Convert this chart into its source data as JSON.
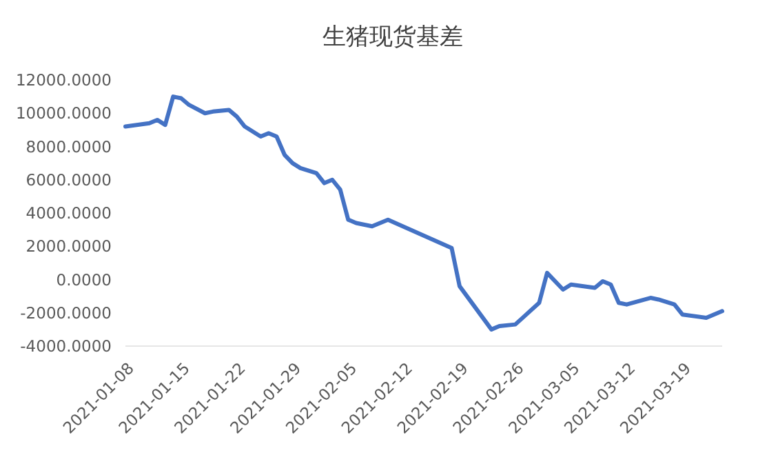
{
  "chart_data": {
    "type": "line",
    "title": "生猪现货基差",
    "grid": false,
    "line_style": "solid",
    "marker": "none",
    "x": [
      "2021-01-08",
      "2021-01-11",
      "2021-01-12",
      "2021-01-13",
      "2021-01-14",
      "2021-01-15",
      "2021-01-16",
      "2021-01-18",
      "2021-01-19",
      "2021-01-21",
      "2021-01-22",
      "2021-01-23",
      "2021-01-25",
      "2021-01-26",
      "2021-01-27",
      "2021-01-28",
      "2021-01-29",
      "2021-01-30",
      "2021-02-01",
      "2021-02-02",
      "2021-02-03",
      "2021-02-04",
      "2021-02-05",
      "2021-02-06",
      "2021-02-08",
      "2021-02-10",
      "2021-02-18",
      "2021-02-19",
      "2021-02-23",
      "2021-02-24",
      "2021-02-26",
      "2021-03-01",
      "2021-03-02",
      "2021-03-04",
      "2021-03-05",
      "2021-03-08",
      "2021-03-09",
      "2021-03-10",
      "2021-03-11",
      "2021-03-12",
      "2021-03-15",
      "2021-03-16",
      "2021-03-18",
      "2021-03-19",
      "2021-03-22",
      "2021-03-24"
    ],
    "series": [
      {
        "color": "#4472c4",
        "values": [
          9200,
          9400,
          9600,
          9300,
          11000,
          10900,
          10500,
          10000,
          10100,
          10200,
          9800,
          9200,
          8600,
          8800,
          8600,
          7500,
          7000,
          6700,
          6400,
          5800,
          6000,
          5400,
          3600,
          3400,
          3200,
          3600,
          1900,
          -400,
          -3000,
          -2800,
          -2700,
          -1400,
          400,
          -600,
          -300,
          -500,
          -100,
          -300,
          -1400,
          -1500,
          -1100,
          -1200,
          -1500,
          -2100,
          -2300,
          -1900
        ]
      }
    ],
    "xlim": [
      "2021-01-08",
      "2021-03-24"
    ],
    "xticks": [
      "2021-01-08",
      "2021-01-15",
      "2021-01-22",
      "2021-01-29",
      "2021-02-05",
      "2021-02-12",
      "2021-02-19",
      "2021-02-26",
      "2021-03-05",
      "2021-03-12",
      "2021-03-19"
    ],
    "ylim": [
      -4000,
      12000
    ],
    "yticks": [
      {
        "value": -4000,
        "label": "-4000.0000"
      },
      {
        "value": -2000,
        "label": "-2000.0000"
      },
      {
        "value": 0,
        "label": "0.0000"
      },
      {
        "value": 2000,
        "label": "2000.0000"
      },
      {
        "value": 4000,
        "label": "4000.0000"
      },
      {
        "value": 6000,
        "label": "6000.0000"
      },
      {
        "value": 8000,
        "label": "8000.0000"
      },
      {
        "value": 10000,
        "label": "10000.0000"
      },
      {
        "value": 12000,
        "label": "12000.0000"
      }
    ]
  }
}
